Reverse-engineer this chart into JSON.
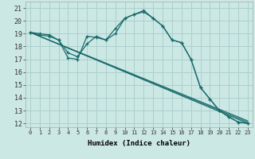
{
  "xlabel": "Humidex (Indice chaleur)",
  "bg_color": "#cce8e5",
  "grid_color": "#aad0cc",
  "line_color": "#1a6b6b",
  "xlim": [
    -0.5,
    23.5
  ],
  "ylim": [
    11.7,
    21.5
  ],
  "yticks": [
    12,
    13,
    14,
    15,
    16,
    17,
    18,
    19,
    20,
    21
  ],
  "xticks": [
    0,
    1,
    2,
    3,
    4,
    5,
    6,
    7,
    8,
    9,
    10,
    11,
    12,
    13,
    14,
    15,
    16,
    17,
    18,
    19,
    20,
    21,
    22,
    23
  ],
  "curve1_x": [
    0,
    1,
    2,
    3,
    4,
    5,
    6,
    7,
    8,
    9,
    10,
    11,
    12,
    13,
    14,
    15,
    16,
    17,
    18,
    19,
    20,
    21,
    22,
    23
  ],
  "curve1_y": [
    19.1,
    18.9,
    18.8,
    18.5,
    17.1,
    17.0,
    18.8,
    18.7,
    18.5,
    19.4,
    20.2,
    20.5,
    20.8,
    20.2,
    19.6,
    18.5,
    18.3,
    17.0,
    14.8,
    13.9,
    13.0,
    12.5,
    12.1,
    12.0
  ],
  "curve2_x": [
    0,
    1,
    2,
    3,
    4,
    5,
    6,
    7,
    8,
    9,
    10,
    11,
    12,
    13,
    14,
    15,
    16,
    17,
    18,
    19,
    20,
    21,
    22,
    23
  ],
  "curve2_y": [
    19.1,
    19.0,
    18.9,
    18.5,
    17.5,
    17.2,
    18.2,
    18.8,
    18.5,
    19.0,
    20.2,
    20.5,
    20.7,
    20.2,
    19.6,
    18.5,
    18.3,
    17.0,
    14.8,
    13.9,
    13.0,
    12.5,
    12.1,
    12.0
  ],
  "line3_x": [
    0,
    23
  ],
  "line3_y": [
    19.1,
    12.0
  ],
  "line4_x": [
    0,
    23
  ],
  "line4_y": [
    19.1,
    12.0
  ],
  "line5_x": [
    0,
    23
  ],
  "line5_y": [
    19.1,
    12.0
  ]
}
